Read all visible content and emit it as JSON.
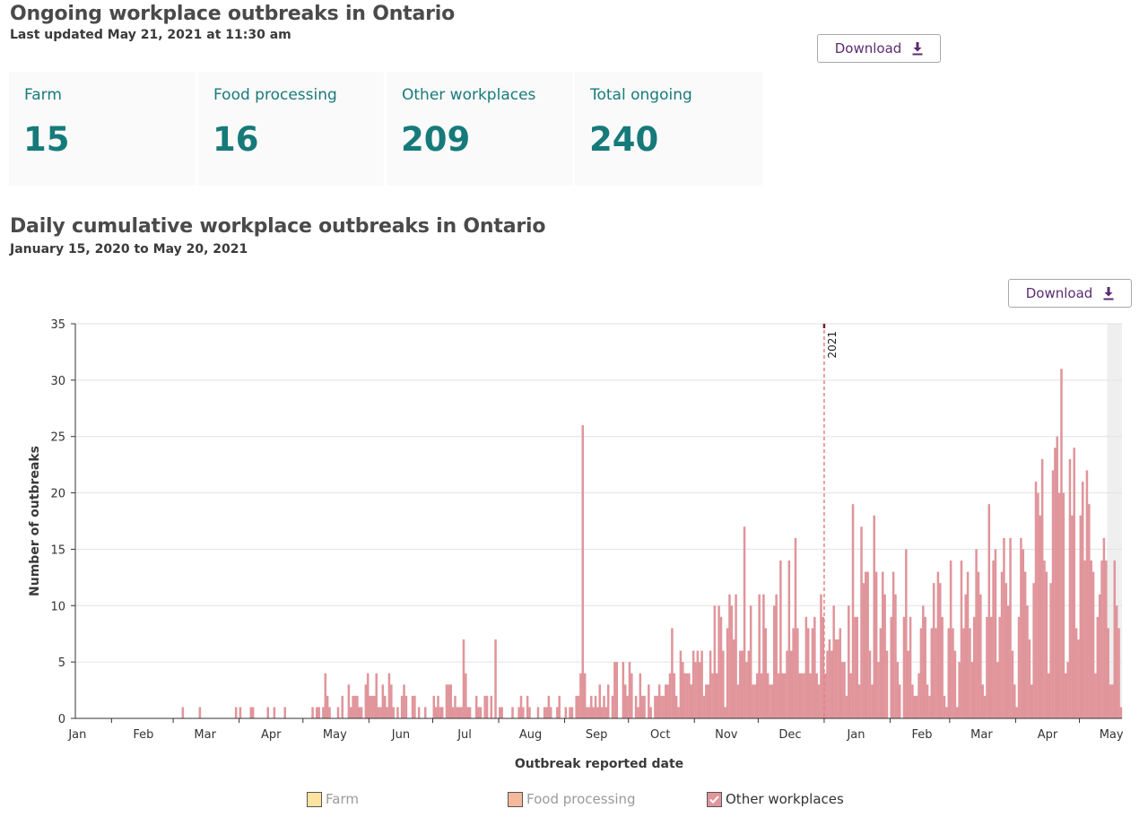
{
  "header": {
    "title": "Ongoing workplace outbreaks in Ontario",
    "last_updated": "Last updated May 21, 2021 at 11:30 am",
    "download_label": "Download"
  },
  "summary_cards": [
    {
      "label": "Farm",
      "value": "15"
    },
    {
      "label": "Food processing",
      "value": "16"
    },
    {
      "label": "Other workplaces",
      "value": "209"
    },
    {
      "label": "Total ongoing",
      "value": "240"
    }
  ],
  "chart_section": {
    "title": "Daily cumulative workplace outbreaks in Ontario",
    "subtitle": "January 15, 2020 to May 20, 2021",
    "download_label": "Download"
  },
  "colors": {
    "accent_teal": "#167a7a",
    "download_purple": "#5b2c6f",
    "bar": "#e0959b",
    "farm": "#fde3a0",
    "food_processing": "#f4b89b",
    "other_workplaces": "#e0959b"
  },
  "chart_data": {
    "type": "bar",
    "title": "",
    "xlabel": "Outbreak reported date",
    "ylabel": "Number of outbreaks",
    "ylim": [
      0,
      35
    ],
    "yticks": [
      0,
      5,
      10,
      15,
      20,
      25,
      30,
      35
    ],
    "grid": true,
    "date_range": [
      "2020-01-15",
      "2021-05-20"
    ],
    "x_tick_labels": [
      "Jan",
      "Feb",
      "Mar",
      "Apr",
      "May",
      "Jun",
      "Jul",
      "Aug",
      "Sep",
      "Oct",
      "Nov",
      "Dec",
      "Jan",
      "Feb",
      "Mar",
      "Apr",
      "May"
    ],
    "annotation": "2021",
    "legend": [
      {
        "name": "Farm",
        "active": false
      },
      {
        "name": "Food processing",
        "active": false
      },
      {
        "name": "Other workplaces",
        "active": true
      }
    ],
    "legend_position": "bottom",
    "series": [
      {
        "name": "Other workplaces",
        "values": [
          0,
          0,
          0,
          0,
          0,
          0,
          0,
          0,
          0,
          0,
          0,
          0,
          0,
          0,
          0,
          0,
          0,
          0,
          0,
          0,
          0,
          0,
          0,
          0,
          0,
          0,
          0,
          0,
          0,
          0,
          0,
          0,
          0,
          0,
          0,
          0,
          0,
          0,
          0,
          0,
          0,
          0,
          0,
          0,
          0,
          0,
          0,
          0,
          0,
          0,
          1,
          0,
          0,
          0,
          0,
          0,
          0,
          0,
          1,
          0,
          0,
          0,
          0,
          0,
          0,
          0,
          0,
          0,
          0,
          0,
          0,
          0,
          0,
          0,
          0,
          1,
          0,
          1,
          0,
          0,
          0,
          0,
          1,
          1,
          0,
          0,
          0,
          0,
          0,
          0,
          1,
          0,
          0,
          1,
          0,
          0,
          0,
          0,
          1,
          0,
          0,
          0,
          0,
          0,
          0,
          0,
          0,
          0,
          0,
          0,
          0,
          1,
          0,
          1,
          1,
          0,
          1,
          4,
          2,
          1,
          0,
          0,
          0,
          1,
          0,
          2,
          0,
          0,
          3,
          1,
          2,
          2,
          2,
          1,
          1,
          0,
          3,
          4,
          2,
          2,
          2,
          4,
          1,
          1,
          3,
          2,
          1,
          4,
          3,
          1,
          0,
          1,
          0,
          2,
          3,
          2,
          0,
          0,
          2,
          2,
          0,
          1,
          0,
          0,
          1,
          0,
          0,
          0,
          2,
          1,
          2,
          1,
          1,
          0,
          3,
          3,
          3,
          1,
          2,
          1,
          1,
          1,
          7,
          4,
          1,
          1,
          0,
          0,
          2,
          1,
          1,
          0,
          2,
          2,
          0,
          2,
          0,
          7,
          0,
          1,
          1,
          0,
          0,
          0,
          0,
          1,
          0,
          0,
          1,
          2,
          1,
          0,
          2,
          1,
          0,
          0,
          0,
          1,
          0,
          0,
          1,
          1,
          2,
          1,
          0,
          0,
          1,
          2,
          0,
          0,
          1,
          0,
          1,
          1,
          0,
          2,
          2,
          4,
          26,
          4,
          1,
          1,
          2,
          1,
          2,
          1,
          3,
          1,
          2,
          1,
          3,
          0,
          2,
          5,
          5,
          0,
          0,
          5,
          3,
          2,
          5,
          4,
          0,
          2,
          1,
          4,
          2,
          2,
          0,
          3,
          1,
          0,
          2,
          2,
          3,
          2,
          2,
          3,
          3,
          4,
          8,
          4,
          2,
          1,
          6,
          5,
          4,
          4,
          4,
          3,
          6,
          5,
          6,
          5,
          6,
          2,
          3,
          3,
          6,
          4,
          10,
          4,
          10,
          9,
          6,
          1,
          8,
          11,
          10,
          7,
          11,
          3,
          6,
          6,
          17,
          5,
          6,
          10,
          3,
          3,
          4,
          11,
          4,
          11,
          8,
          4,
          3,
          3,
          10,
          11,
          4,
          14,
          4,
          4,
          6,
          14,
          6,
          8,
          16,
          8,
          4,
          4,
          4,
          9,
          8,
          4,
          8,
          9,
          4,
          3,
          11,
          9,
          4,
          6,
          7,
          6,
          10,
          7,
          7,
          8,
          5,
          5,
          2,
          10,
          4,
          19,
          9,
          9,
          3,
          17,
          12,
          13,
          13,
          6,
          3,
          18,
          13,
          5,
          8,
          13,
          11,
          6,
          0,
          9,
          13,
          11,
          5,
          3,
          0,
          9,
          15,
          6,
          9,
          3,
          2,
          2,
          4,
          8,
          10,
          9,
          3,
          2,
          8,
          12,
          8,
          13,
          12,
          9,
          2,
          1,
          8,
          14,
          8,
          6,
          1,
          5,
          14,
          8,
          11,
          13,
          8,
          5,
          9,
          15,
          13,
          11,
          3,
          2,
          9,
          19,
          9,
          14,
          15,
          5,
          9,
          13,
          16,
          12,
          10,
          16,
          6,
          3,
          1,
          9,
          16,
          15,
          13,
          10,
          7,
          3,
          12,
          21,
          20,
          18,
          23,
          14,
          13,
          4,
          12,
          22,
          24,
          25,
          20,
          31,
          20,
          4,
          5,
          23,
          18,
          24,
          8,
          7,
          18,
          21,
          14,
          22,
          19,
          14,
          13,
          4,
          9,
          11,
          14,
          16,
          14,
          8,
          3,
          3,
          14,
          10,
          8,
          1
        ]
      }
    ]
  }
}
